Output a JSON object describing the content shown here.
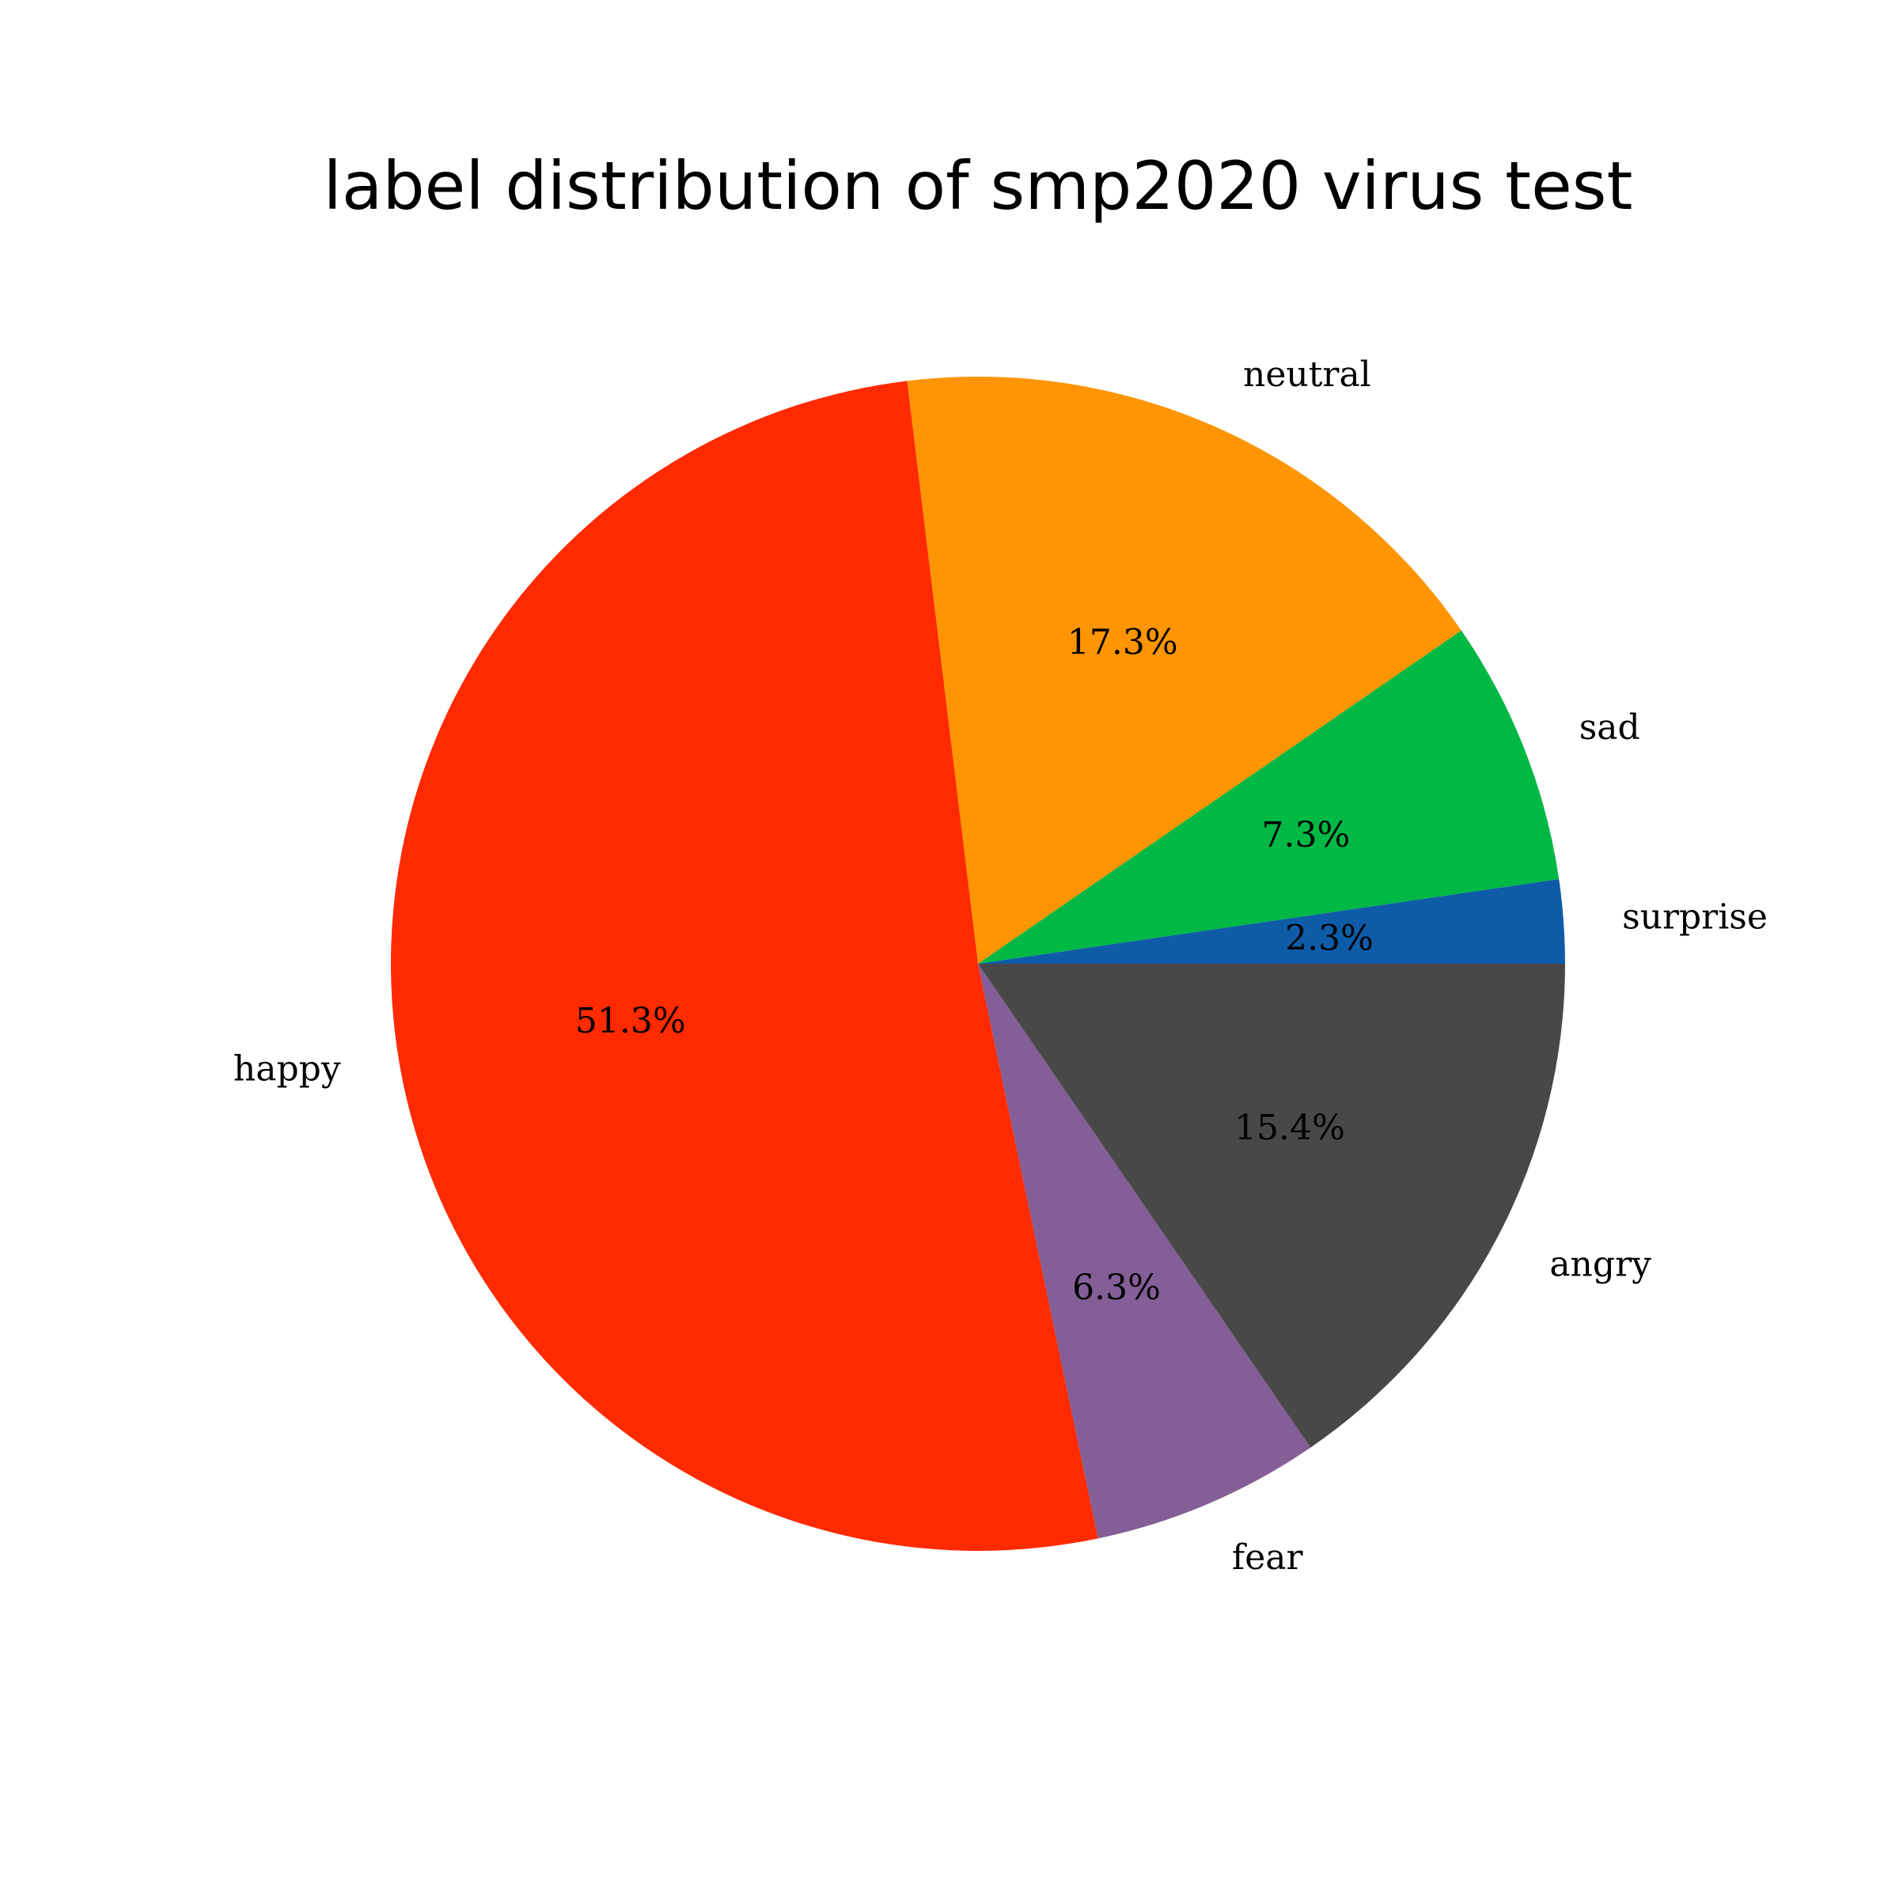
{
  "chart_data": {
    "type": "pie",
    "title": "label distribution of smp2020 virus test",
    "start_angle_deg": 0,
    "direction": "counterclockwise",
    "slices": [
      {
        "label": "surprise",
        "percent": 2.3,
        "pct_label": "2.3%",
        "color": "#0e5ca8"
      },
      {
        "label": "sad",
        "percent": 7.3,
        "pct_label": "7.3%",
        "color": "#00b844"
      },
      {
        "label": "neutral",
        "percent": 17.3,
        "pct_label": "17.3%",
        "color": "#ff9503"
      },
      {
        "label": "happy",
        "percent": 51.3,
        "pct_label": "51.3%",
        "color": "#ff2a00"
      },
      {
        "label": "fear",
        "percent": 6.3,
        "pct_label": "6.3%",
        "color": "#845e96"
      },
      {
        "label": "angry",
        "percent": 15.4,
        "pct_label": "15.4%",
        "color": "#484848"
      }
    ]
  }
}
